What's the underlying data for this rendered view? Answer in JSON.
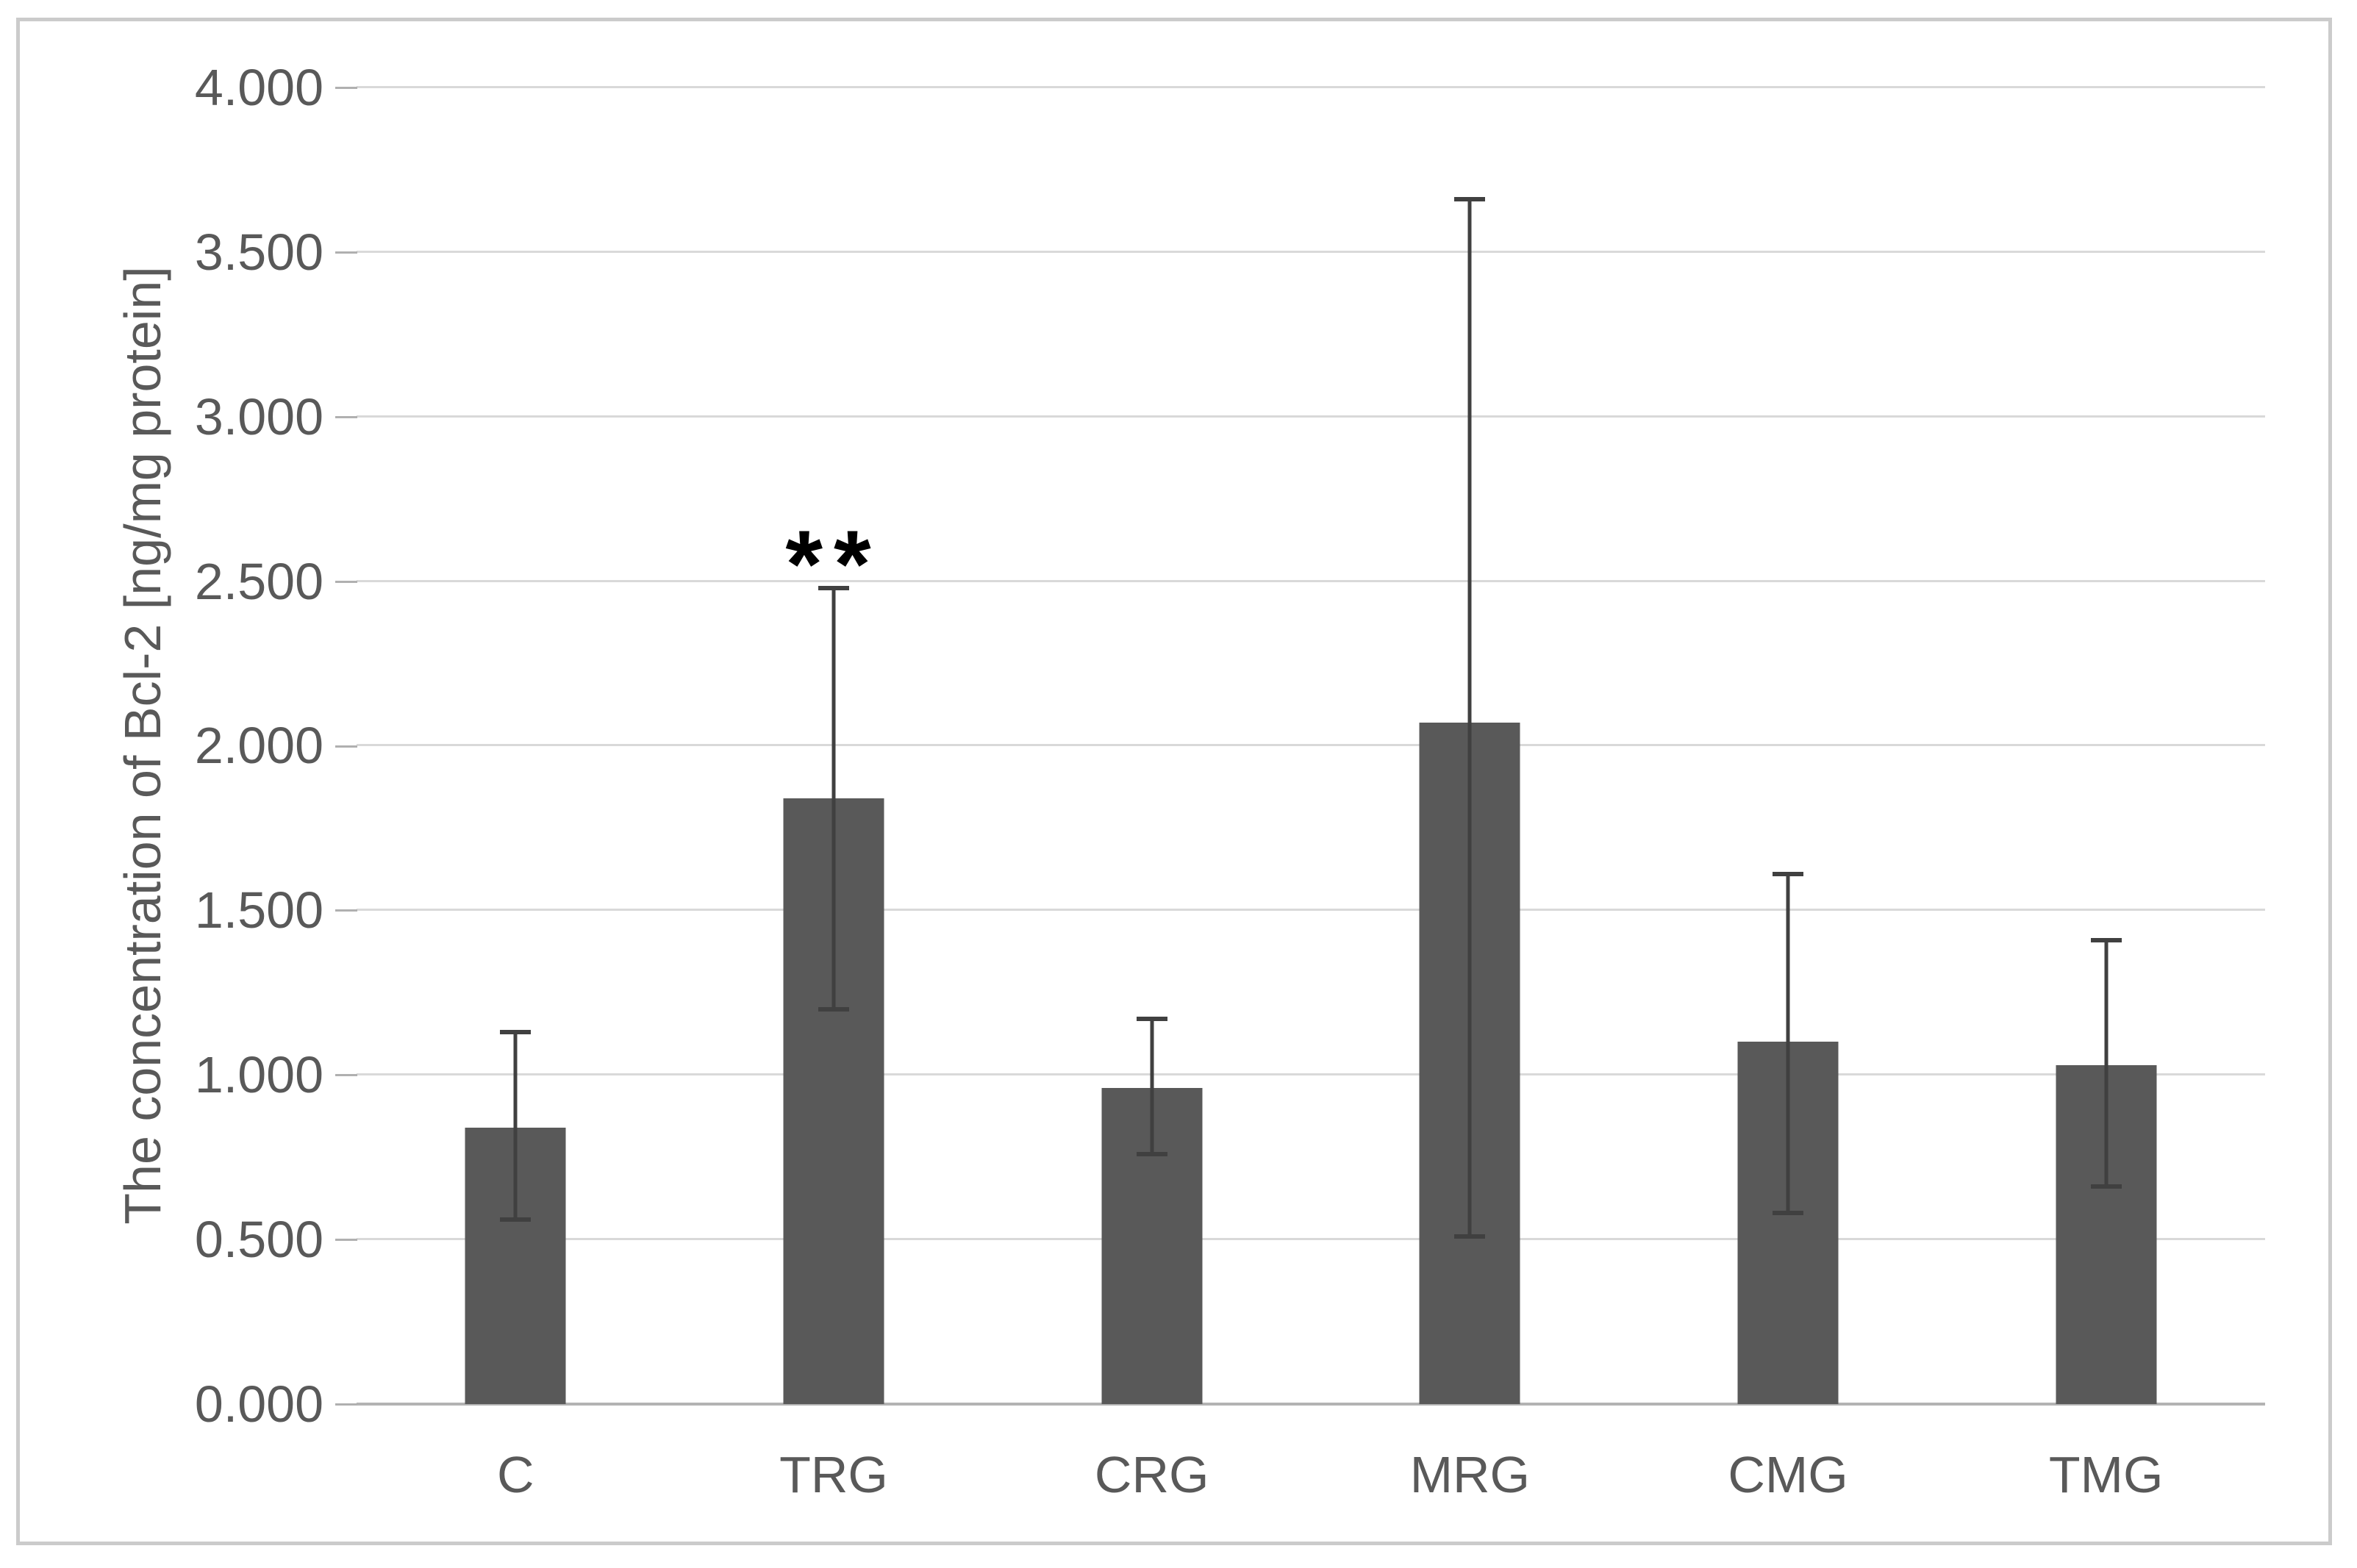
{
  "figure": {
    "background": "#ffffff",
    "border_color": "#cbcbcb"
  },
  "chart_data": {
    "type": "bar",
    "title": "",
    "xlabel": "",
    "ylabel": "The concentration of Bcl-2 [ng/mg protein]",
    "categories": [
      "C",
      "TRG",
      "CRG",
      "MRG",
      "CMG",
      "TMG"
    ],
    "values": [
      0.84,
      1.84,
      0.96,
      2.07,
      1.1,
      1.03
    ],
    "error_upper": [
      1.13,
      2.48,
      1.17,
      3.66,
      1.61,
      1.41
    ],
    "error_lower": [
      0.56,
      1.2,
      0.76,
      0.51,
      0.58,
      0.66
    ],
    "ylim": [
      0,
      4.0
    ],
    "ytick_step": 0.5,
    "ytick_labels": [
      "0.000",
      "0.500",
      "1.000",
      "1.500",
      "2.000",
      "2.500",
      "3.000",
      "3.500",
      "4.000"
    ],
    "grid": true,
    "legend": null,
    "annotations": [
      {
        "text": "**",
        "category": "TRG",
        "y": 2.66
      }
    ],
    "colors": {
      "bar": "#595959",
      "error_bar": "#404040",
      "gridline": "#d9d9d9",
      "baseline": "#b3b3b3",
      "tick_mark": "#b0b0b0",
      "label_text": "#595959",
      "annotation_text": "#000000"
    }
  }
}
